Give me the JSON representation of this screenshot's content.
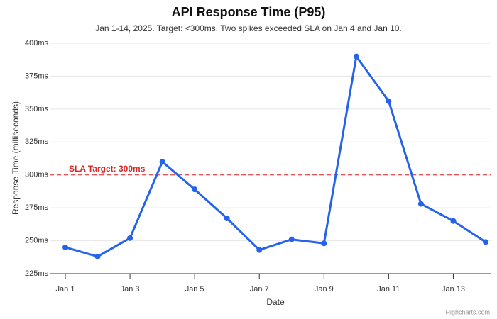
{
  "chart_data": {
    "type": "line",
    "title": "API Response Time (P95)",
    "subtitle": "Jan 1-14, 2025. Target: <300ms. Two spikes exceeded SLA on Jan 4 and Jan 10.",
    "x_label": "Date",
    "y_label": "Response Time (milliseconds)",
    "categories": [
      "Jan 1",
      null,
      "Jan 3",
      null,
      "Jan 5",
      null,
      "Jan 7",
      null,
      "Jan 9",
      null,
      "Jan 11",
      null,
      "Jan 13",
      null
    ],
    "series": [
      {
        "name": "Response Time",
        "color": "#2563eb",
        "values": [
          245,
          238,
          252,
          310,
          289,
          267,
          243,
          251,
          248,
          390,
          356,
          278,
          265,
          249
        ]
      }
    ],
    "ylim": [
      225,
      400
    ],
    "yticks": [
      {
        "value": 225,
        "label": "225ms"
      },
      {
        "value": 250,
        "label": "250ms"
      },
      {
        "value": 275,
        "label": "275ms"
      },
      {
        "value": 300,
        "label": "300ms"
      },
      {
        "value": 325,
        "label": "325ms"
      },
      {
        "value": 350,
        "label": "350ms"
      },
      {
        "value": 375,
        "label": "375ms"
      },
      {
        "value": 400,
        "label": "400ms"
      }
    ],
    "grid": true,
    "reference_line": {
      "value": 300,
      "label": "SLA Target: 300ms",
      "color": "#dc2626"
    },
    "credits": "Highcharts.com"
  }
}
